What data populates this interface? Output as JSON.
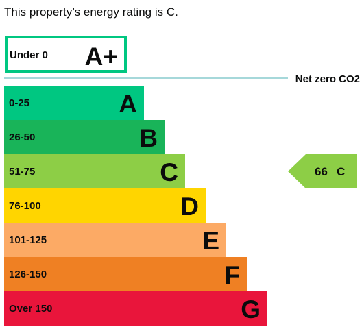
{
  "summary": "This property’s energy rating is C.",
  "chart_data": {
    "type": "bar",
    "top_band": {
      "range": "Under 0",
      "letter": "A+",
      "color": "#00c781",
      "fill": "#ffffff"
    },
    "net_zero_label": "Net zero CO2",
    "net_zero_line_color": "#a6d8da",
    "categories": [
      "0-25",
      "26-50",
      "51-75",
      "76-100",
      "101-125",
      "126-150",
      "Over 150"
    ],
    "letters": [
      "A",
      "B",
      "C",
      "D",
      "E",
      "F",
      "G"
    ],
    "colors": [
      "#00c781",
      "#19b459",
      "#8dce46",
      "#ffd500",
      "#fcaa65",
      "#ef8023",
      "#e9153b"
    ],
    "current": {
      "score": "66",
      "letter": "C",
      "band_index": 2,
      "color": "#8dce46"
    }
  }
}
